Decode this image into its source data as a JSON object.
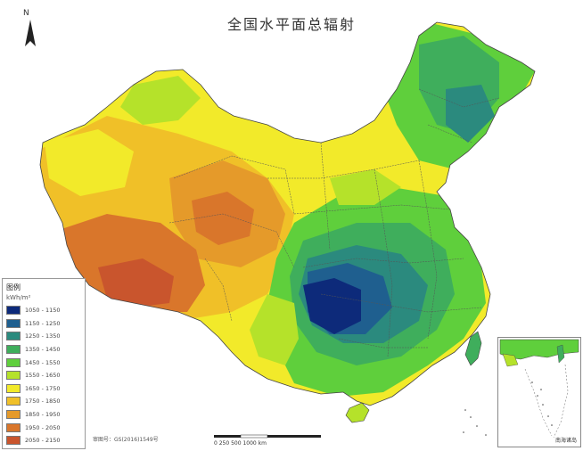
{
  "map": {
    "title": "全国水平面总辐射",
    "north_label": "N",
    "scale_text": "0    250   500        1000 km",
    "footer_note": "审图号：GS(2016)1549号",
    "inset_caption": "南海诸岛"
  },
  "legend": {
    "title": "图例",
    "unit": "kWh/m²",
    "classes": [
      {
        "label": "1050 - 1150",
        "color": "#0d2a7a"
      },
      {
        "label": "1150 - 1250",
        "color": "#1f5f8f"
      },
      {
        "label": "1250 - 1350",
        "color": "#2b8a7e"
      },
      {
        "label": "1350 - 1450",
        "color": "#3fae5c"
      },
      {
        "label": "1450 - 1550",
        "color": "#5fcf3c"
      },
      {
        "label": "1550 - 1650",
        "color": "#b5e22a"
      },
      {
        "label": "1650 - 1750",
        "color": "#f2ea2a"
      },
      {
        "label": "1750 - 1850",
        "color": "#f0c028"
      },
      {
        "label": "1850 - 1950",
        "color": "#e59a2a"
      },
      {
        "label": "1950 - 2050",
        "color": "#d9762b"
      },
      {
        "label": "2050 - 2150",
        "color": "#c9552d"
      }
    ]
  }
}
